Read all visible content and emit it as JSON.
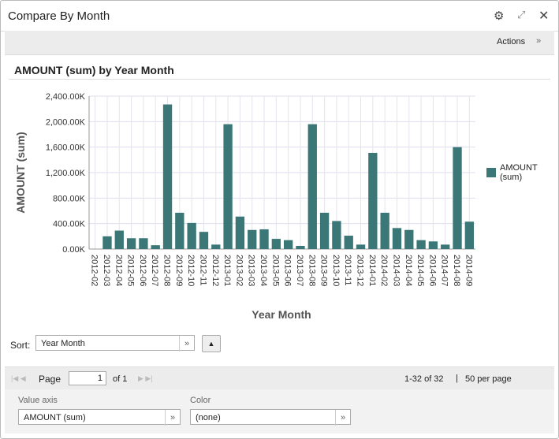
{
  "window": {
    "title": "Compare By Month"
  },
  "toolbar": {
    "actions": "Actions"
  },
  "chart_data": {
    "type": "bar",
    "title": "AMOUNT (sum) by Year Month",
    "x_label": "Year Month",
    "y_label": "AMOUNT (sum)",
    "categories": [
      "2012-02",
      "2012-03",
      "2012-04",
      "2012-05",
      "2012-06",
      "2012-07",
      "2012-08",
      "2012-09",
      "2012-10",
      "2012-11",
      "2012-12",
      "2013-01",
      "2013-02",
      "2013-03",
      "2013-04",
      "2013-05",
      "2013-06",
      "2013-07",
      "2013-08",
      "2013-09",
      "2013-10",
      "2013-11",
      "2013-12",
      "2014-01",
      "2014-02",
      "2014-03",
      "2014-04",
      "2014-05",
      "2014-06",
      "2014-07",
      "2014-08",
      "2014-09"
    ],
    "series": [
      {
        "name": "AMOUNT (sum)",
        "color": "#3b7776",
        "values": [
          0,
          200000,
          290000,
          170000,
          170000,
          60000,
          2270000,
          570000,
          410000,
          270000,
          70000,
          1960000,
          510000,
          300000,
          310000,
          160000,
          140000,
          50000,
          1960000,
          570000,
          440000,
          210000,
          70000,
          1510000,
          570000,
          330000,
          300000,
          140000,
          120000,
          70000,
          1600000,
          430000
        ]
      }
    ],
    "ylim": [
      0,
      2400000
    ],
    "yticks": [
      {
        "value": 0,
        "label": "0.00K"
      },
      {
        "value": 400000,
        "label": "400.00K"
      },
      {
        "value": 800000,
        "label": "800.00K"
      },
      {
        "value": 1200000,
        "label": "1,200.00K"
      },
      {
        "value": 1600000,
        "label": "1,600.00K"
      },
      {
        "value": 2000000,
        "label": "2,000.00K"
      },
      {
        "value": 2400000,
        "label": "2,400.00K"
      }
    ],
    "grid": true,
    "legend": "right"
  },
  "sort": {
    "label": "Sort:",
    "value": "Year Month"
  },
  "pager": {
    "page_label": "Page",
    "page": 1,
    "of": "of 1",
    "range": "1-32 of 32",
    "per_page": "50 per page"
  },
  "settings": {
    "value_axis_label": "Value axis",
    "value_axis": "AMOUNT (sum)",
    "color_label": "Color",
    "color": "(none)"
  }
}
